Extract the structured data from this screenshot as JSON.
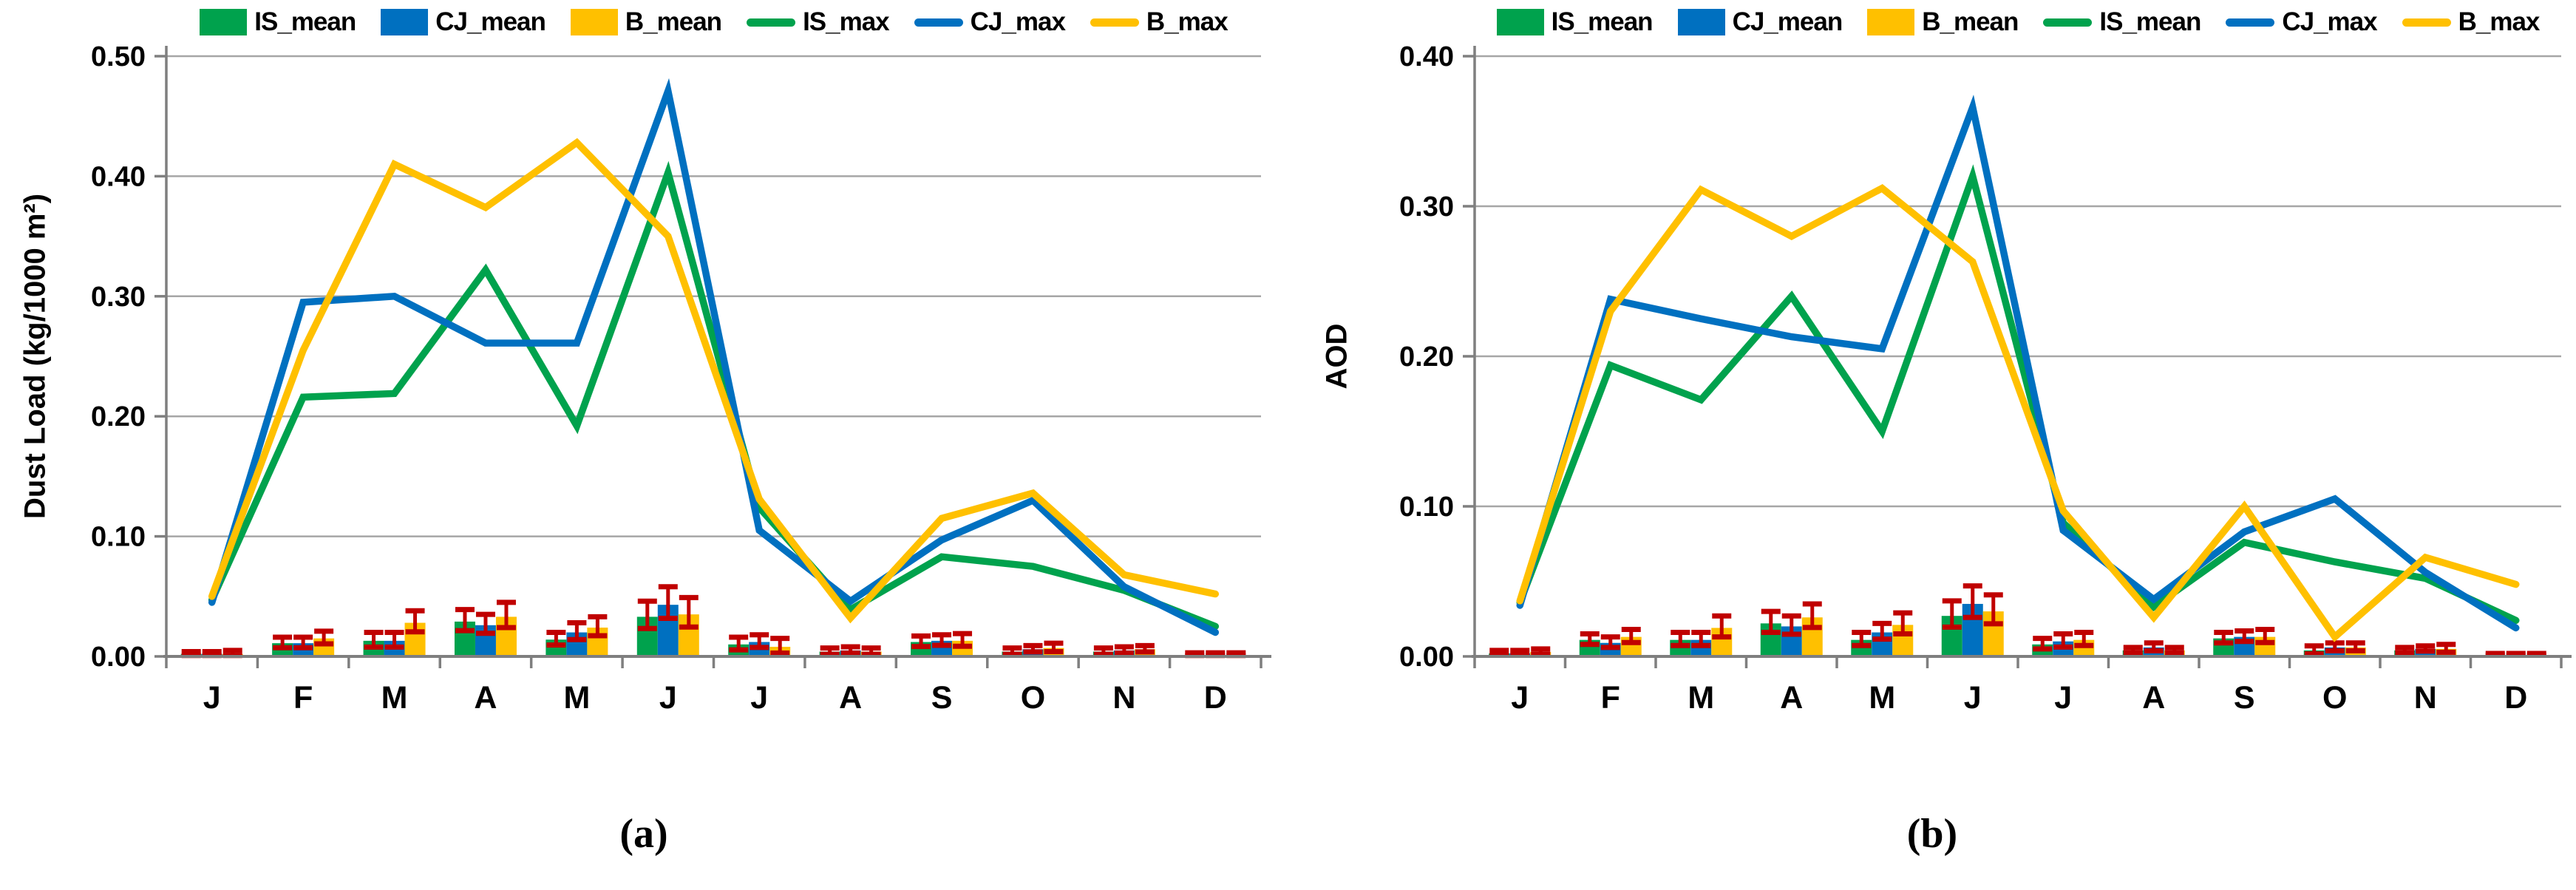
{
  "months": [
    "J",
    "F",
    "M",
    "A",
    "M",
    "J",
    "J",
    "A",
    "S",
    "O",
    "N",
    "D"
  ],
  "colors": {
    "green": "#00A24D",
    "blue": "#0070C0",
    "yellow": "#FFC000",
    "error_red": "#C00000",
    "grid": "#A6A6A6",
    "axis": "#7F7F7F"
  },
  "chart_data": [
    {
      "id": "a",
      "type": "bar",
      "caption": "(a)",
      "ylabel": "Dust Load (kg/1000 m²)",
      "ylim": [
        0,
        0.5
      ],
      "ytick_step": 0.1,
      "ytick_labels": [
        "0.00",
        "0.10",
        "0.20",
        "0.30",
        "0.40",
        "0.50"
      ],
      "grid": true,
      "legend_position": "top",
      "legend": [
        {
          "label": "IS_mean",
          "swatch": "box",
          "color": "#00A24D"
        },
        {
          "label": "CJ_mean",
          "swatch": "box",
          "color": "#0070C0"
        },
        {
          "label": "B_mean",
          "swatch": "box",
          "color": "#FFC000"
        },
        {
          "label": "IS_max",
          "swatch": "line",
          "color": "#00A24D"
        },
        {
          "label": "CJ_max",
          "swatch": "line",
          "color": "#0070C0"
        },
        {
          "label": "B_max",
          "swatch": "line",
          "color": "#FFC000"
        }
      ],
      "bar_series": [
        {
          "name": "IS_mean",
          "color": "#00A24D",
          "values": [
            0.002,
            0.011,
            0.013,
            0.029,
            0.014,
            0.033,
            0.01,
            0.004,
            0.012,
            0.004,
            0.004,
            0.001
          ],
          "err": [
            0.002,
            0.005,
            0.007,
            0.01,
            0.006,
            0.013,
            0.006,
            0.003,
            0.005,
            0.003,
            0.003,
            0.002
          ]
        },
        {
          "name": "CJ_mean",
          "color": "#0070C0",
          "values": [
            0.002,
            0.011,
            0.013,
            0.026,
            0.02,
            0.043,
            0.012,
            0.005,
            0.013,
            0.006,
            0.005,
            0.001
          ],
          "err": [
            0.002,
            0.005,
            0.007,
            0.009,
            0.008,
            0.015,
            0.006,
            0.003,
            0.005,
            0.003,
            0.003,
            0.002
          ]
        },
        {
          "name": "B_mean",
          "color": "#FFC000",
          "values": [
            0.002,
            0.015,
            0.028,
            0.033,
            0.024,
            0.035,
            0.008,
            0.004,
            0.013,
            0.007,
            0.006,
            0.001
          ],
          "err": [
            0.003,
            0.006,
            0.01,
            0.012,
            0.009,
            0.014,
            0.007,
            0.003,
            0.006,
            0.004,
            0.003,
            0.002
          ]
        }
      ],
      "line_series": [
        {
          "name": "IS_max",
          "color": "#00A24D",
          "values": [
            0.047,
            0.216,
            0.219,
            0.322,
            0.192,
            0.403,
            0.124,
            0.039,
            0.083,
            0.075,
            0.055,
            0.025
          ]
        },
        {
          "name": "CJ_max",
          "color": "#0070C0",
          "values": [
            0.045,
            0.295,
            0.3,
            0.261,
            0.261,
            0.471,
            0.105,
            0.046,
            0.097,
            0.13,
            0.058,
            0.02
          ]
        },
        {
          "name": "B_max",
          "color": "#FFC000",
          "values": [
            0.05,
            0.255,
            0.41,
            0.374,
            0.428,
            0.35,
            0.131,
            0.032,
            0.115,
            0.136,
            0.068,
            0.052
          ]
        }
      ]
    },
    {
      "id": "b",
      "type": "bar",
      "caption": "(b)",
      "ylabel": "AOD",
      "ylim": [
        0,
        0.4
      ],
      "ytick_step": 0.1,
      "ytick_labels": [
        "0.00",
        "0.10",
        "0.20",
        "0.30",
        "0.40"
      ],
      "grid": true,
      "legend_position": "top",
      "legend": [
        {
          "label": "IS_mean",
          "swatch": "box",
          "color": "#00A24D"
        },
        {
          "label": "CJ_mean",
          "swatch": "box",
          "color": "#0070C0"
        },
        {
          "label": "B_mean",
          "swatch": "box",
          "color": "#FFC000"
        },
        {
          "label": "IS_mean",
          "swatch": "line",
          "color": "#00A24D"
        },
        {
          "label": "CJ_max",
          "swatch": "line",
          "color": "#0070C0"
        },
        {
          "label": "B_max",
          "swatch": "line",
          "color": "#FFC000"
        }
      ],
      "bar_series": [
        {
          "name": "IS_mean",
          "color": "#00A24D",
          "values": [
            0.002,
            0.011,
            0.011,
            0.022,
            0.011,
            0.027,
            0.008,
            0.004,
            0.012,
            0.004,
            0.004,
            0.001
          ],
          "err": [
            0.002,
            0.004,
            0.005,
            0.008,
            0.005,
            0.01,
            0.004,
            0.002,
            0.004,
            0.003,
            0.002,
            0.001
          ]
        },
        {
          "name": "CJ_mean",
          "color": "#0070C0",
          "values": [
            0.002,
            0.009,
            0.011,
            0.02,
            0.016,
            0.035,
            0.01,
            0.006,
            0.013,
            0.006,
            0.005,
            0.001
          ],
          "err": [
            0.002,
            0.004,
            0.005,
            0.007,
            0.006,
            0.012,
            0.005,
            0.003,
            0.004,
            0.003,
            0.002,
            0.001
          ]
        },
        {
          "name": "B_mean",
          "color": "#FFC000",
          "values": [
            0.003,
            0.013,
            0.019,
            0.026,
            0.021,
            0.03,
            0.011,
            0.004,
            0.013,
            0.006,
            0.005,
            0.001
          ],
          "err": [
            0.002,
            0.005,
            0.008,
            0.009,
            0.008,
            0.011,
            0.005,
            0.002,
            0.005,
            0.003,
            0.003,
            0.001
          ]
        }
      ],
      "line_series": [
        {
          "name": "IS_mean",
          "color": "#00A24D",
          "values": [
            0.036,
            0.194,
            0.171,
            0.24,
            0.15,
            0.32,
            0.089,
            0.033,
            0.076,
            0.063,
            0.052,
            0.024
          ]
        },
        {
          "name": "CJ_max",
          "color": "#0070C0",
          "values": [
            0.034,
            0.238,
            0.225,
            0.213,
            0.205,
            0.366,
            0.084,
            0.038,
            0.083,
            0.105,
            0.056,
            0.019
          ]
        },
        {
          "name": "B_max",
          "color": "#FFC000",
          "values": [
            0.037,
            0.23,
            0.311,
            0.28,
            0.312,
            0.263,
            0.097,
            0.026,
            0.1,
            0.013,
            0.066,
            0.048
          ]
        }
      ]
    }
  ]
}
